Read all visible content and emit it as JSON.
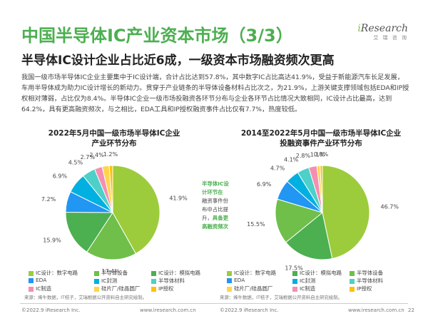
{
  "header": {
    "title": "中国半导体IC产业资本市场（3/3）",
    "logo_brand_prefix": "i",
    "logo_brand_rest": "Research",
    "logo_sub": "艾 瑞 咨 询",
    "subtitle": "半导体IC设计企业占比近6成，一级资本市场融资频次更高"
  },
  "paragraph": "我国一级市场半导体IC企业主要集中于IC设计端，合计占比达到57.8%，其中数字IC占比高达41.9%，受益于新能源汽车长足发展，车用半导体成为助力IC设计增长的新动力。贯穿于产业链条的半导体设备材料占比次之，为21.9%，上游关键支撑领域包括EDA和IP授权相对薄弱，占比仅为8.4%。半导体IC企业一级市场投融资各环节分布与企业各环节占比情况大致相同，IC设计占比最高，达到64.2%，具有更高融资频次，与之相比，EDA工具和IP授权融资事件占比仅有7.7%，热度较低。",
  "callout": {
    "line1": "半导体IC设",
    "line2": "计环节在",
    "line3": "融资事件份",
    "line4": "布中占比提",
    "line5": "升，",
    "line5_hl": "具备更",
    "line6": "高融资频次"
  },
  "legend_items": [
    {
      "label": "IC设计：数字电路",
      "color": "#9ccc3c"
    },
    {
      "label": "半导体设备",
      "color": "#6fbf4a"
    },
    {
      "label": "IC设计：模拟电路",
      "color": "#4caf50"
    },
    {
      "label": "EDA",
      "color": "#2196f3"
    },
    {
      "label": "IC封测",
      "color": "#00b0e0"
    },
    {
      "label": "半导体材料",
      "color": "#4dd0c8"
    },
    {
      "label": "IC制造",
      "color": "#f48fb1"
    },
    {
      "label": "硅片厂/硅晶圆厂",
      "color": "#ffd54f"
    },
    {
      "label": "IP授权",
      "color": "#ffc107"
    }
  ],
  "source_left": "来源：烯牛数据，IT桔子，艾瑞根据公开资料自主研究绘制。",
  "source_right": "来源：烯牛数据，IT桔子，艾瑞根据公开资料自主研究绘制。",
  "footer": {
    "left_copyright": "©2022.9 iResearch Inc.",
    "left_url": "www.iresearch.com.cn",
    "right_copyright": "©2022.9 iResearch Inc.",
    "right_url": "www.iresearch.com.cn",
    "page": "22"
  },
  "chart_data": [
    {
      "type": "pie",
      "title_line1": "2022年5月中国一级市场半导体IC企业",
      "title_line2": "产业环节分布",
      "categories": [
        "IC设计：数字电路",
        "半导体设备",
        "IC设计：模拟电路",
        "EDA",
        "IC封测",
        "半导体材料",
        "IC制造",
        "硅片厂/硅晶圆厂",
        "IP授权"
      ],
      "values": [
        41.9,
        17.4,
        15.9,
        7.2,
        6.9,
        4.5,
        2.7,
        2.4,
        1.2
      ],
      "labels": [
        "41.9%",
        "17.4%",
        "15.9%",
        "7.2%",
        "6.9%",
        "4.5%",
        "2.7%",
        "2.4%",
        "1.2%"
      ]
    },
    {
      "type": "pie",
      "title_line1": "2014至2022年5月中国一级市场半导体IC企业",
      "title_line2": "投融资事件产业环节分布",
      "categories": [
        "IC设计：数字电路",
        "IC设计：模拟电路",
        "半导体设备",
        "EDA",
        "IC封测",
        "半导体材料",
        "IC制造",
        "硅片厂/硅晶圆厂",
        "IP授权"
      ],
      "values": [
        46.7,
        17.5,
        15.5,
        6.9,
        4.7,
        4.1,
        2.8,
        1.1,
        0.8
      ],
      "labels": [
        "46.7%",
        "17.5%",
        "15.5%",
        "6.9%",
        "4.7%",
        "4.1%",
        "2.8%",
        "1.1%",
        "0.8%"
      ]
    }
  ]
}
